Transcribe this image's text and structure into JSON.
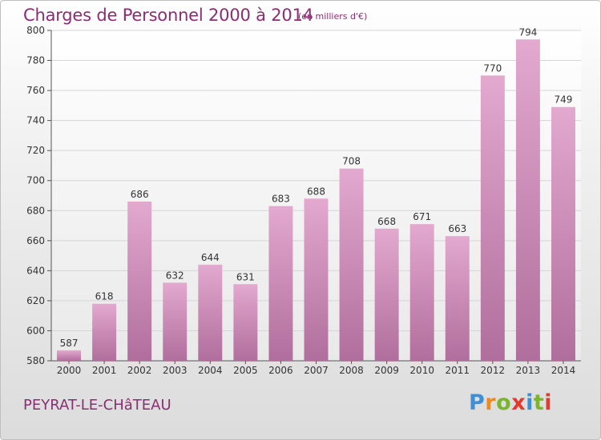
{
  "title": "Charges de Personnel 2000 à 2014",
  "subtitle": "(en milliers d'€)",
  "commune": "PEYRAT-LE-CHâTEAU",
  "logo": {
    "text": "Proxiti",
    "letter_colors": [
      "#3f8fd6",
      "#f08a1c",
      "#7ab52c",
      "#e23b2e",
      "#3f8fd6",
      "#7ab52c",
      "#e23b2e"
    ]
  },
  "colors": {
    "bar_light": "#e3a9cf",
    "bar_dark": "#b06e9c",
    "title": "#8a2e73",
    "plot_bg_top": "#ffffff",
    "plot_bg_bottom": "#e9e9e9",
    "grid": "#d5d5d5"
  },
  "chart_data": {
    "type": "bar",
    "categories": [
      "2000",
      "2001",
      "2002",
      "2003",
      "2004",
      "2005",
      "2006",
      "2007",
      "2008",
      "2009",
      "2010",
      "2011",
      "2012",
      "2013",
      "2014"
    ],
    "values": [
      587,
      618,
      686,
      632,
      644,
      631,
      683,
      688,
      708,
      668,
      671,
      663,
      770,
      794,
      749
    ],
    "data_labels": [
      "587",
      "618",
      "686",
      "632",
      "644",
      "631",
      "683",
      "688",
      "708",
      "668",
      "671",
      "663",
      "770",
      "794",
      "749"
    ],
    "yticks": [
      "580",
      "600",
      "620",
      "640",
      "660",
      "680",
      "700",
      "720",
      "740",
      "760",
      "780",
      "800"
    ],
    "ylim": [
      580,
      800
    ],
    "grid": true,
    "legend": "none"
  }
}
